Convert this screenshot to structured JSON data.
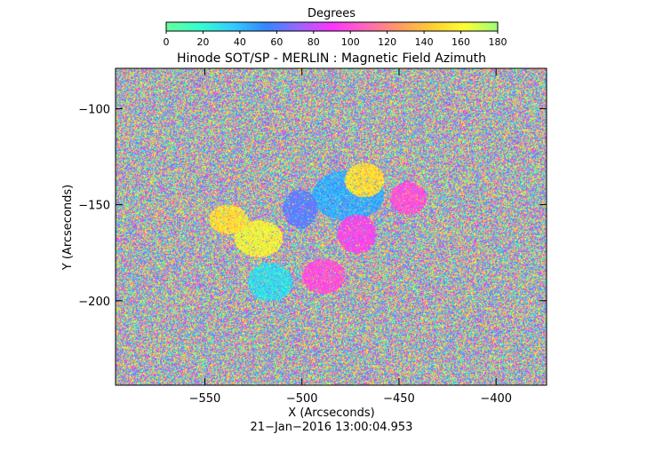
{
  "chart_data": {
    "type": "heatmap",
    "title": "Hinode SOT/SP - MERLIN : Magnetic Field Azimuth",
    "xlabel": "X (Arcseconds)",
    "ylabel": "Y (Arcseconds)",
    "xlim": [
      -596,
      -374
    ],
    "ylim": [
      -244,
      -79
    ],
    "x_ticks": [
      -550,
      -500,
      -450,
      -400
    ],
    "x_tick_labels": [
      "−550",
      "−500",
      "−450",
      "−400"
    ],
    "y_ticks": [
      -100,
      -150,
      -200
    ],
    "y_tick_labels": [
      "−100",
      "−150",
      "−200"
    ],
    "colorbar": {
      "label": "Degrees",
      "range": [
        0,
        180
      ],
      "ticks": [
        0,
        20,
        40,
        60,
        80,
        100,
        120,
        140,
        160,
        180
      ],
      "tick_labels": [
        "0",
        "20",
        "40",
        "60",
        "80",
        "100",
        "120",
        "140",
        "160",
        "180"
      ],
      "colormap": [
        "#66ff99",
        "#33ffcc",
        "#33ccff",
        "#3388ff",
        "#9966ff",
        "#ff33ff",
        "#ff66bb",
        "#ff9966",
        "#ffcc33",
        "#ffff33",
        "#99ff77"
      ]
    },
    "footer": "21−Jan−2016 13:00:04.953",
    "coherent_regions": [
      {
        "x": [
          -495,
          -458
        ],
        "y": [
          -158,
          -132
        ],
        "azimuth_deg": 45
      },
      {
        "x": [
          -478,
          -458
        ],
        "y": [
          -146,
          -128
        ],
        "azimuth_deg": 150
      },
      {
        "x": [
          -455,
          -436
        ],
        "y": [
          -155,
          -138
        ],
        "azimuth_deg": 100
      },
      {
        "x": [
          -535,
          -510
        ],
        "y": [
          -177,
          -158
        ],
        "azimuth_deg": 160
      },
      {
        "x": [
          -528,
          -505
        ],
        "y": [
          -200,
          -180
        ],
        "azimuth_deg": 30
      },
      {
        "x": [
          -500,
          -478
        ],
        "y": [
          -196,
          -178
        ],
        "azimuth_deg": 100
      },
      {
        "x": [
          -482,
          -462
        ],
        "y": [
          -175,
          -155
        ],
        "azimuth_deg": 95
      },
      {
        "x": [
          -510,
          -492
        ],
        "y": [
          -162,
          -142
        ],
        "azimuth_deg": 60
      },
      {
        "x": [
          -548,
          -528
        ],
        "y": [
          -165,
          -150
        ],
        "azimuth_deg": 150
      }
    ]
  }
}
